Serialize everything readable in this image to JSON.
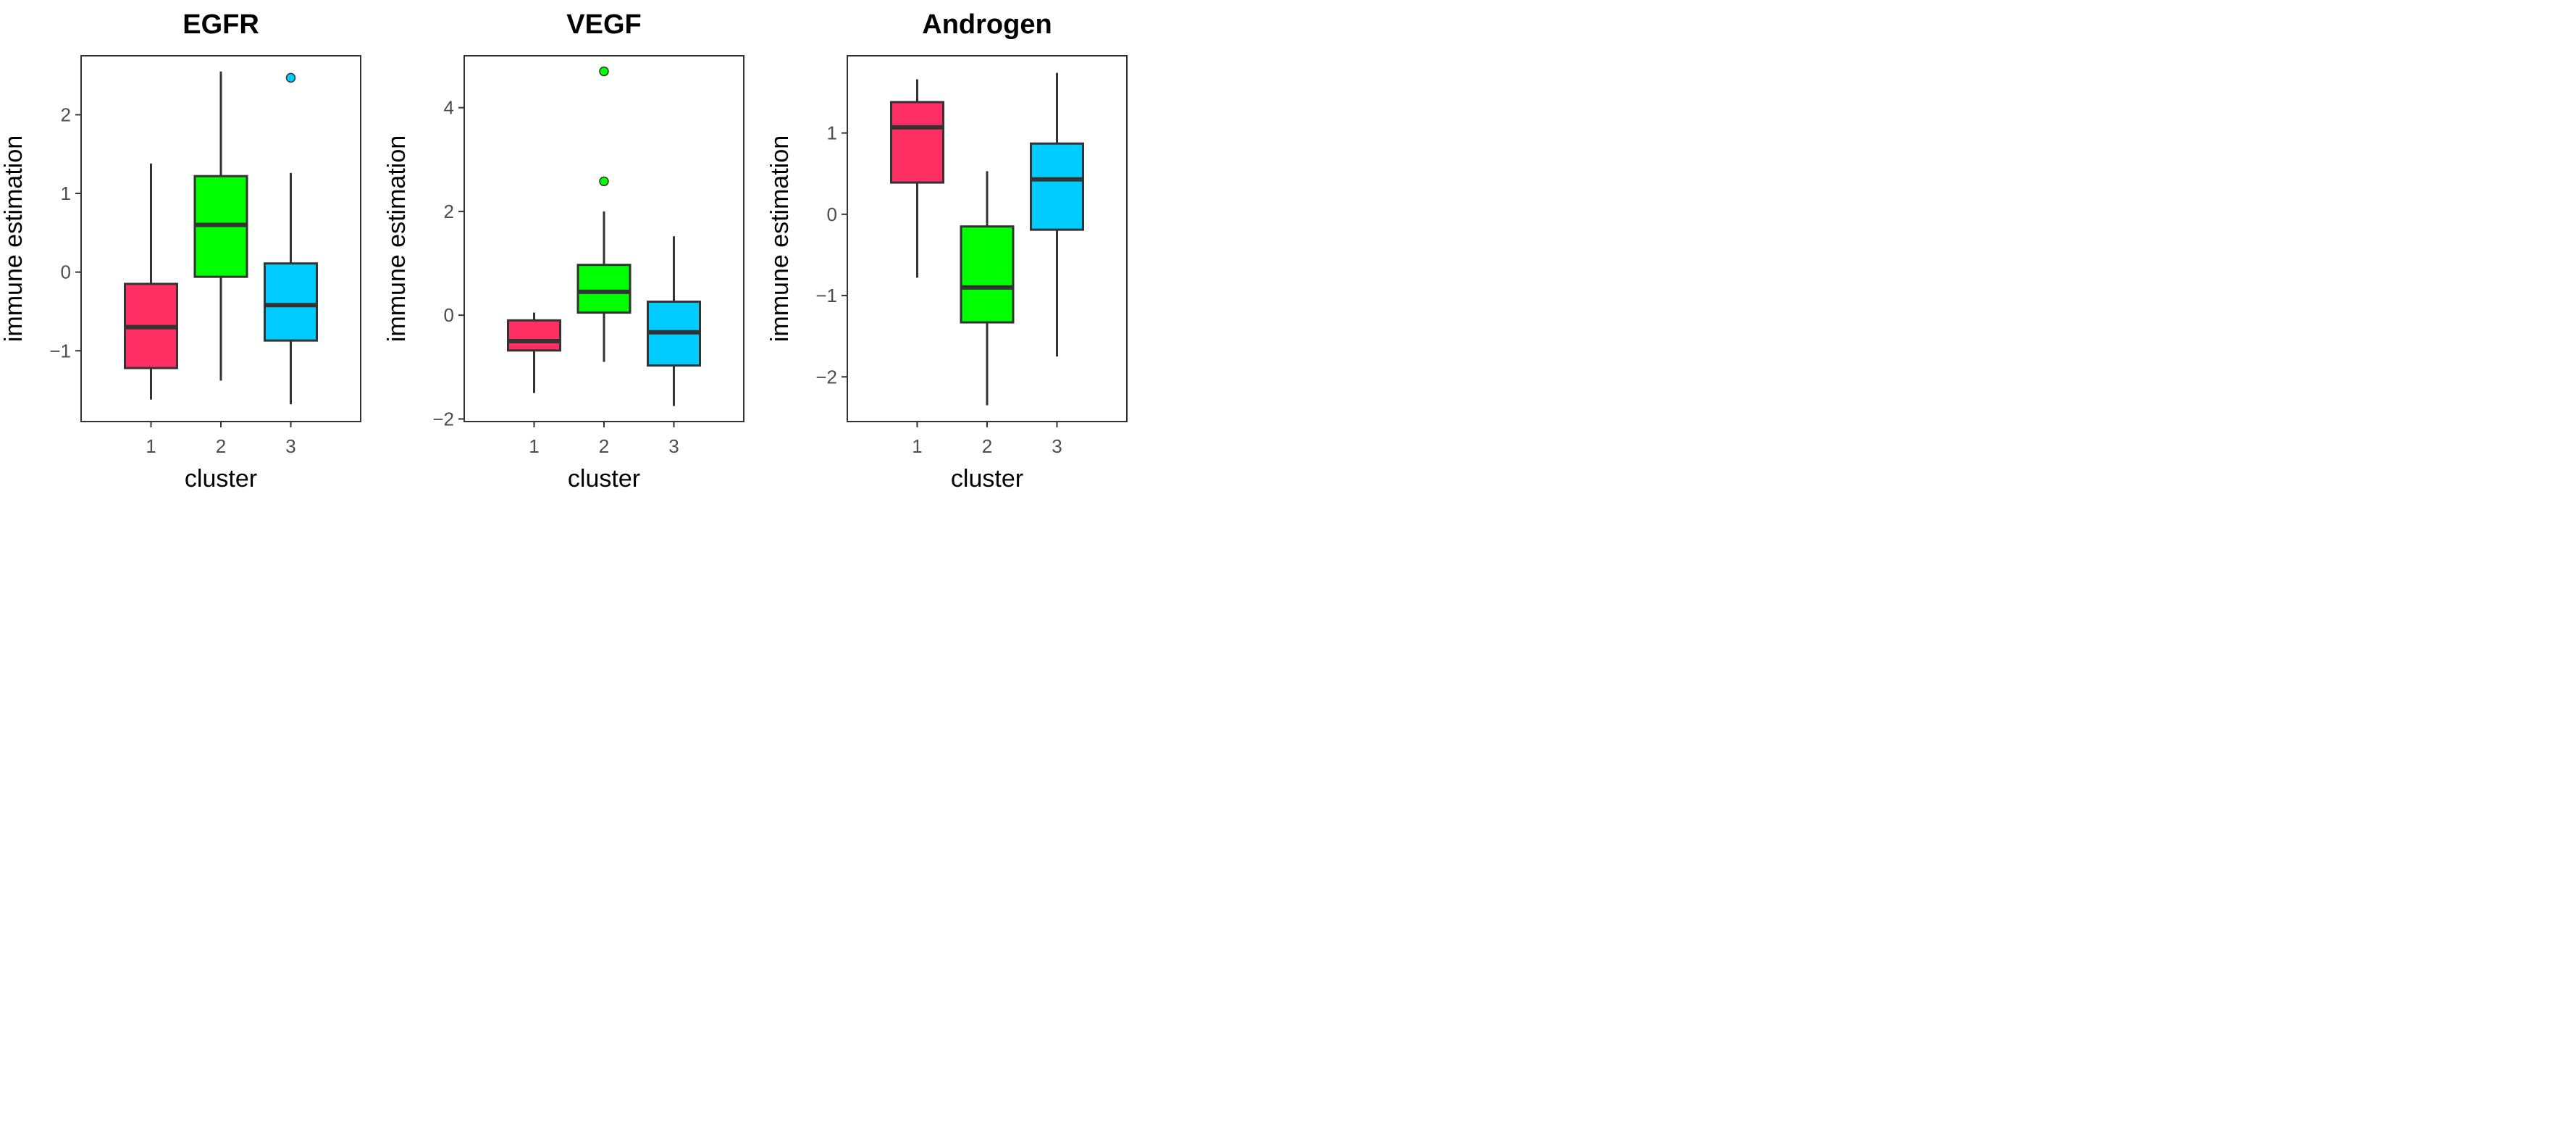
{
  "chart_data": [
    {
      "type": "boxplot",
      "title": "EGFR",
      "xlabel": "cluster",
      "ylabel": "immune estimation",
      "categories": [
        "1",
        "2",
        "3"
      ],
      "colors": [
        "#FF2E63",
        "#00FF00",
        "#00CCFF"
      ],
      "ylim": [
        -1.9,
        2.75
      ],
      "yticks": [
        -1,
        0,
        1,
        2
      ],
      "ytick_labels": [
        "−1",
        "0",
        "1",
        "2"
      ],
      "boxes": [
        {
          "cluster": "1",
          "low": -1.62,
          "q1": -1.22,
          "median": -0.7,
          "q3": -0.15,
          "high": 1.38,
          "outliers": []
        },
        {
          "cluster": "2",
          "low": -1.38,
          "q1": -0.06,
          "median": 0.6,
          "q3": 1.22,
          "high": 2.55,
          "outliers": []
        },
        {
          "cluster": "3",
          "low": -1.68,
          "q1": -0.87,
          "median": -0.42,
          "q3": 0.11,
          "high": 1.26,
          "outliers": [
            2.47
          ]
        }
      ]
    },
    {
      "type": "boxplot",
      "title": "VEGF",
      "xlabel": "cluster",
      "ylabel": "immune estimation",
      "categories": [
        "1",
        "2",
        "3"
      ],
      "colors": [
        "#FF2E63",
        "#00FF00",
        "#00CCFF"
      ],
      "ylim": [
        -2.05,
        5.0
      ],
      "yticks": [
        -2,
        0,
        2,
        4
      ],
      "ytick_labels": [
        "−2",
        "0",
        "2",
        "4"
      ],
      "boxes": [
        {
          "cluster": "1",
          "low": -1.5,
          "q1": -0.68,
          "median": -0.5,
          "q3": -0.1,
          "high": 0.05,
          "outliers": []
        },
        {
          "cluster": "2",
          "low": -0.9,
          "q1": 0.05,
          "median": 0.45,
          "q3": 0.97,
          "high": 2.0,
          "outliers": [
            2.58,
            4.7
          ]
        },
        {
          "cluster": "3",
          "low": -1.75,
          "q1": -0.97,
          "median": -0.33,
          "q3": 0.26,
          "high": 1.52,
          "outliers": []
        }
      ]
    },
    {
      "type": "boxplot",
      "title": "Androgen",
      "xlabel": "cluster",
      "ylabel": "immune estimation",
      "categories": [
        "1",
        "2",
        "3"
      ],
      "colors": [
        "#FF2E63",
        "#00FF00",
        "#00CCFF"
      ],
      "ylim": [
        -2.55,
        1.95
      ],
      "yticks": [
        -2,
        -1,
        0,
        1
      ],
      "ytick_labels": [
        "−2",
        "−1",
        "0",
        "1"
      ],
      "boxes": [
        {
          "cluster": "1",
          "low": -0.78,
          "q1": 0.39,
          "median": 1.07,
          "q3": 1.38,
          "high": 1.66,
          "outliers": []
        },
        {
          "cluster": "2",
          "low": -2.35,
          "q1": -1.33,
          "median": -0.9,
          "q3": -0.15,
          "high": 0.53,
          "outliers": []
        },
        {
          "cluster": "3",
          "low": -1.75,
          "q1": -0.19,
          "median": 0.43,
          "q3": 0.87,
          "high": 1.74,
          "outliers": []
        }
      ]
    }
  ]
}
